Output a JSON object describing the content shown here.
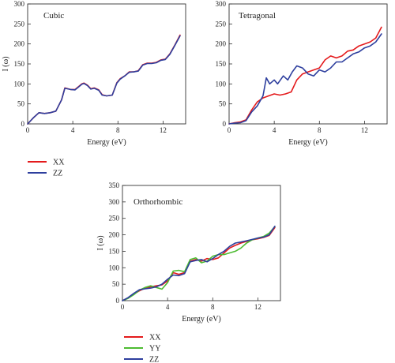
{
  "chart_data": [
    {
      "type": "line",
      "title": "Cubic",
      "xlabel": "Energy (eV)",
      "ylabel": "I (ω)",
      "xlim": [
        0,
        14
      ],
      "ylim": [
        0,
        300
      ],
      "xticks": [
        0,
        4,
        8,
        12
      ],
      "yticks": [
        0,
        50,
        100,
        150,
        200,
        250,
        300
      ],
      "legend": "below",
      "series": [
        {
          "name": "XX",
          "color": "#e41a1c",
          "x": [
            0,
            0.5,
            1,
            1.5,
            2,
            2.5,
            3,
            3.3,
            3.8,
            4.2,
            4.5,
            4.8,
            5,
            5.3,
            5.6,
            5.9,
            6.3,
            6.6,
            7,
            7.5,
            7.9,
            8.2,
            8.6,
            9,
            9.4,
            9.8,
            10.2,
            10.6,
            11,
            11.4,
            11.8,
            12.2,
            12.6,
            13,
            13.5
          ],
          "y": [
            0,
            15,
            28,
            26,
            28,
            32,
            60,
            90,
            86,
            86,
            93,
            100,
            102,
            97,
            88,
            90,
            85,
            73,
            70,
            72,
            103,
            113,
            120,
            130,
            130,
            133,
            148,
            152,
            152,
            154,
            160,
            162,
            175,
            195,
            222
          ]
        },
        {
          "name": "ZZ",
          "color": "#2e3f9e",
          "x": [
            0,
            0.5,
            1,
            1.5,
            2,
            2.5,
            3,
            3.3,
            3.8,
            4.2,
            4.5,
            4.8,
            5,
            5.3,
            5.6,
            5.9,
            6.3,
            6.6,
            7,
            7.5,
            7.9,
            8.2,
            8.6,
            9,
            9.4,
            9.8,
            10.2,
            10.6,
            11,
            11.4,
            11.8,
            12.2,
            12.6,
            13,
            13.5
          ],
          "y": [
            0,
            15,
            28,
            26,
            28,
            32,
            60,
            89,
            86,
            85,
            92,
            99,
            101,
            96,
            87,
            89,
            84,
            72,
            70,
            72,
            102,
            112,
            120,
            129,
            130,
            132,
            147,
            151,
            151,
            153,
            159,
            161,
            174,
            194,
            220
          ]
        }
      ]
    },
    {
      "type": "line",
      "title": "Tetragonal",
      "xlabel": "Energy (eV)",
      "ylabel": "",
      "xlim": [
        0,
        14
      ],
      "ylim": [
        0,
        300
      ],
      "xticks": [
        0,
        4,
        8,
        12
      ],
      "yticks": [
        0,
        50,
        100,
        150,
        200,
        250,
        300
      ],
      "series": [
        {
          "name": "XX",
          "color": "#e41a1c",
          "x": [
            0,
            0.5,
            1,
            1.5,
            2,
            2.5,
            3,
            3.5,
            4,
            4.5,
            5,
            5.5,
            6,
            6.5,
            7,
            7.5,
            8,
            8.5,
            9,
            9.5,
            10,
            10.5,
            11,
            11.5,
            12,
            12.5,
            13,
            13.5
          ],
          "y": [
            0,
            3,
            5,
            10,
            35,
            55,
            65,
            70,
            75,
            72,
            75,
            80,
            110,
            125,
            130,
            135,
            140,
            160,
            170,
            165,
            170,
            182,
            185,
            195,
            200,
            205,
            215,
            242
          ]
        },
        {
          "name": "ZZ",
          "color": "#2e3f9e",
          "x": [
            0,
            0.5,
            1,
            1.5,
            2,
            2.5,
            3,
            3.3,
            3.6,
            4,
            4.3,
            4.8,
            5.2,
            5.6,
            6,
            6.5,
            7,
            7.5,
            8,
            8.5,
            9,
            9.5,
            10,
            10.5,
            11,
            11.5,
            12,
            12.5,
            13,
            13.5
          ],
          "y": [
            0,
            2,
            3,
            8,
            30,
            45,
            70,
            115,
            100,
            110,
            100,
            120,
            110,
            130,
            145,
            140,
            125,
            120,
            135,
            130,
            140,
            155,
            155,
            165,
            175,
            180,
            190,
            195,
            205,
            225
          ]
        }
      ]
    },
    {
      "type": "line",
      "title": "Orthorhombic",
      "xlabel": "Energy (eV)",
      "ylabel": "I (ω)",
      "xlim": [
        0,
        14
      ],
      "ylim": [
        0,
        350
      ],
      "xticks": [
        0,
        4,
        8,
        12
      ],
      "yticks": [
        0,
        50,
        100,
        150,
        200,
        250,
        300,
        350
      ],
      "legend": "below",
      "series": [
        {
          "name": "XX",
          "color": "#e41a1c",
          "x": [
            0,
            0.5,
            1,
            1.5,
            2,
            2.5,
            3,
            3.5,
            4,
            4.5,
            5,
            5.5,
            6,
            6.5,
            7,
            7.5,
            8,
            8.5,
            9,
            9.5,
            10,
            10.5,
            11,
            11.5,
            12,
            12.5,
            13,
            13.5
          ],
          "y": [
            0,
            8,
            20,
            30,
            38,
            42,
            45,
            48,
            60,
            85,
            80,
            85,
            120,
            125,
            120,
            128,
            125,
            130,
            145,
            160,
            168,
            175,
            180,
            185,
            188,
            192,
            198,
            222
          ]
        },
        {
          "name": "YY",
          "color": "#4dbb31",
          "x": [
            0,
            0.5,
            1,
            1.5,
            2,
            2.5,
            3,
            3.5,
            4,
            4.5,
            5,
            5.5,
            6,
            6.5,
            7,
            7.5,
            8,
            8.5,
            9,
            9.5,
            10,
            10.5,
            11,
            11.5,
            12,
            12.5,
            13,
            13.5
          ],
          "y": [
            0,
            7,
            18,
            32,
            40,
            45,
            40,
            35,
            55,
            90,
            92,
            88,
            125,
            130,
            115,
            120,
            135,
            140,
            140,
            145,
            150,
            160,
            175,
            185,
            190,
            195,
            205,
            225
          ]
        },
        {
          "name": "ZZ",
          "color": "#2e3f9e",
          "x": [
            0,
            0.5,
            1,
            1.5,
            2,
            2.5,
            3,
            3.5,
            4,
            4.5,
            5,
            5.5,
            6,
            6.5,
            7,
            7.5,
            8,
            8.5,
            9,
            9.5,
            10,
            10.5,
            11,
            11.5,
            12,
            12.5,
            13,
            13.5
          ],
          "y": [
            0,
            9,
            22,
            33,
            36,
            38,
            42,
            50,
            65,
            78,
            76,
            82,
            118,
            122,
            125,
            118,
            128,
            140,
            150,
            165,
            175,
            178,
            182,
            186,
            190,
            193,
            200,
            226
          ]
        }
      ]
    }
  ]
}
